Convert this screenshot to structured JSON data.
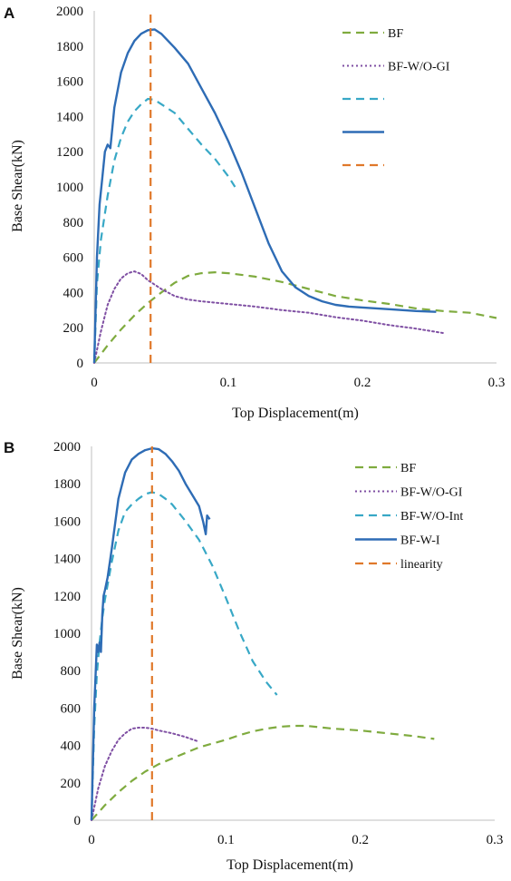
{
  "colors": {
    "BF": "#7fab3f",
    "BF-W/O-GI": "#7f4fa3",
    "BF-W/O-Int": "#38a8c6",
    "BF-W-I": "#2e6cb5",
    "linearity": "#e0782a",
    "axis": "#bfbfbf"
  },
  "chart_data": [
    {
      "panel": "A",
      "type": "line",
      "xlabel": "Top Displacement(m)",
      "ylabel": "Base Shear(kN)",
      "xlim": [
        0,
        0.3
      ],
      "ylim": [
        0,
        2000
      ],
      "xticks": [
        "0",
        "0.1",
        "0.2",
        "0.3"
      ],
      "yticks": [
        "0",
        "200",
        "400",
        "600",
        "800",
        "1000",
        "1200",
        "1400",
        "1600",
        "1800",
        "2000"
      ],
      "grid": false,
      "legend_position": "top-right",
      "legend": [
        "BF",
        "BF-W/O-GI",
        "",
        "",
        ""
      ],
      "series": [
        {
          "key": "BF",
          "style": "dash",
          "x": [
            0,
            0.01,
            0.02,
            0.03,
            0.04,
            0.05,
            0.06,
            0.07,
            0.08,
            0.09,
            0.1,
            0.12,
            0.14,
            0.16,
            0.18,
            0.2,
            0.22,
            0.24,
            0.26,
            0.28,
            0.3
          ],
          "y": [
            0,
            100,
            190,
            270,
            340,
            400,
            455,
            495,
            510,
            515,
            510,
            490,
            460,
            420,
            380,
            355,
            335,
            310,
            295,
            285,
            255
          ]
        },
        {
          "key": "BF-W/O-GI",
          "style": "dot",
          "x": [
            0,
            0.005,
            0.01,
            0.015,
            0.02,
            0.025,
            0.03,
            0.035,
            0.04,
            0.05,
            0.06,
            0.07,
            0.08,
            0.1,
            0.12,
            0.14,
            0.16,
            0.18,
            0.2,
            0.22,
            0.24,
            0.26
          ],
          "y": [
            0,
            180,
            330,
            420,
            480,
            510,
            520,
            505,
            470,
            420,
            380,
            360,
            350,
            335,
            320,
            300,
            285,
            260,
            240,
            215,
            195,
            170
          ]
        },
        {
          "key": "BF-W/O-Int",
          "style": "dash",
          "x": [
            0,
            0.002,
            0.005,
            0.01,
            0.015,
            0.02,
            0.025,
            0.03,
            0.035,
            0.04,
            0.045,
            0.05,
            0.06,
            0.07,
            0.08,
            0.09,
            0.1,
            0.105
          ],
          "y": [
            0,
            450,
            700,
            950,
            1150,
            1280,
            1370,
            1430,
            1470,
            1500,
            1495,
            1470,
            1420,
            1330,
            1240,
            1160,
            1060,
            1000
          ]
        },
        {
          "key": "BF-W-I",
          "style": "solid",
          "x": [
            0,
            0.002,
            0.004,
            0.006,
            0.008,
            0.01,
            0.012,
            0.015,
            0.02,
            0.025,
            0.03,
            0.035,
            0.04,
            0.045,
            0.05,
            0.06,
            0.07,
            0.08,
            0.09,
            0.1,
            0.11,
            0.12,
            0.13,
            0.14,
            0.15,
            0.16,
            0.17,
            0.18,
            0.19,
            0.2,
            0.22,
            0.24,
            0.255
          ],
          "y": [
            0,
            600,
            900,
            1050,
            1200,
            1240,
            1220,
            1450,
            1650,
            1760,
            1830,
            1870,
            1890,
            1895,
            1870,
            1790,
            1700,
            1560,
            1420,
            1260,
            1080,
            880,
            680,
            520,
            430,
            380,
            350,
            330,
            320,
            315,
            305,
            295,
            290
          ]
        },
        {
          "key": "linearity",
          "style": "dash",
          "x": [
            0.042,
            0.042
          ],
          "y": [
            0,
            2000
          ]
        }
      ]
    },
    {
      "panel": "B",
      "type": "line",
      "xlabel": "Top Displacement(m)",
      "ylabel": "Base Shear(kN)",
      "xlim": [
        0,
        0.3
      ],
      "ylim": [
        0,
        2000
      ],
      "xticks": [
        "0",
        "0.1",
        "0.2",
        "0.3"
      ],
      "yticks": [
        "0",
        "200",
        "400",
        "600",
        "800",
        "1000",
        "1200",
        "1400",
        "1600",
        "1800",
        "2000"
      ],
      "grid": false,
      "legend_position": "top-right",
      "legend": [
        "BF",
        "BF-W/O-GI",
        "BF-W/O-Int",
        "BF-W-I",
        "linearity"
      ],
      "series": [
        {
          "key": "BF",
          "style": "dash",
          "x": [
            0,
            0.01,
            0.02,
            0.03,
            0.04,
            0.05,
            0.06,
            0.07,
            0.08,
            0.09,
            0.1,
            0.11,
            0.12,
            0.13,
            0.14,
            0.15,
            0.16,
            0.18,
            0.2,
            0.22,
            0.24,
            0.255
          ],
          "y": [
            0,
            80,
            150,
            210,
            260,
            300,
            330,
            360,
            390,
            410,
            430,
            455,
            475,
            490,
            500,
            505,
            505,
            490,
            480,
            465,
            450,
            435
          ]
        },
        {
          "key": "BF-W/O-GI",
          "style": "dot",
          "x": [
            0,
            0.005,
            0.01,
            0.015,
            0.02,
            0.025,
            0.03,
            0.035,
            0.04,
            0.045,
            0.05,
            0.06,
            0.07,
            0.08
          ],
          "y": [
            0,
            170,
            290,
            370,
            430,
            465,
            490,
            495,
            495,
            490,
            480,
            465,
            445,
            420
          ]
        },
        {
          "key": "BF-W/O-Int",
          "style": "dash",
          "x": [
            0,
            0.002,
            0.004,
            0.006,
            0.008,
            0.01,
            0.015,
            0.02,
            0.025,
            0.03,
            0.035,
            0.04,
            0.045,
            0.05,
            0.055,
            0.06,
            0.07,
            0.08,
            0.09,
            0.1,
            0.11,
            0.12,
            0.13,
            0.138
          ],
          "y": [
            0,
            500,
            780,
            950,
            1080,
            1180,
            1380,
            1550,
            1650,
            1690,
            1720,
            1745,
            1755,
            1745,
            1720,
            1690,
            1600,
            1500,
            1360,
            1190,
            1010,
            850,
            740,
            670
          ]
        },
        {
          "key": "BF-W-I",
          "style": "solid",
          "x": [
            0,
            0.002,
            0.004,
            0.005,
            0.006,
            0.007,
            0.008,
            0.009,
            0.01,
            0.012,
            0.015,
            0.02,
            0.025,
            0.03,
            0.035,
            0.04,
            0.045,
            0.05,
            0.055,
            0.06,
            0.065,
            0.07,
            0.075,
            0.08,
            0.083,
            0.085,
            0.086,
            0.088
          ],
          "y": [
            0,
            600,
            940,
            900,
            950,
            900,
            1100,
            1200,
            1230,
            1300,
            1450,
            1720,
            1860,
            1930,
            1960,
            1980,
            1990,
            1985,
            1960,
            1920,
            1870,
            1800,
            1740,
            1680,
            1600,
            1530,
            1630,
            1610
          ]
        },
        {
          "key": "linearity",
          "style": "dash",
          "x": [
            0.045,
            0.045
          ],
          "y": [
            0,
            2000
          ]
        }
      ]
    }
  ]
}
